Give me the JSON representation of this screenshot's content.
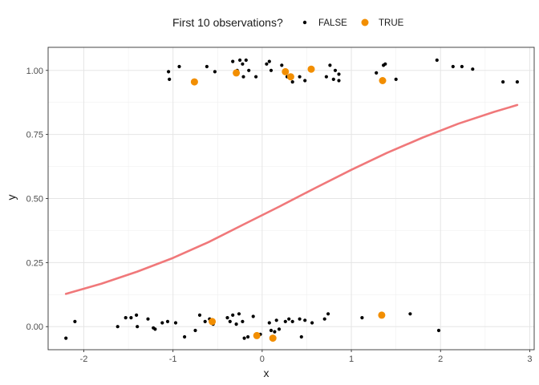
{
  "chart_data": {
    "type": "scatter",
    "xlabel": "x",
    "ylabel": "y",
    "xlim": [
      -2.4,
      3.05
    ],
    "ylim": [
      -0.09,
      1.09
    ],
    "x_ticks": [
      -2,
      -1,
      0,
      1,
      2,
      3
    ],
    "x_tick_labels": [
      "-2",
      "-1",
      "0",
      "1",
      "2",
      "3"
    ],
    "y_ticks": [
      0,
      0.25,
      0.5,
      0.75,
      1
    ],
    "y_tick_labels": [
      "0.00",
      "0.25",
      "0.50",
      "0.75",
      "1.00"
    ],
    "grid": true,
    "legend": {
      "title": "First 10 observations?",
      "position": "top",
      "entries": [
        {
          "label": "FALSE",
          "color": "#000000"
        },
        {
          "label": "TRUE",
          "color": "#f28e00"
        }
      ]
    },
    "series": [
      {
        "name": "FALSE",
        "color": "#000000",
        "points": [
          [
            -1.05,
            0.995
          ],
          [
            -1.04,
            0.965
          ],
          [
            -0.93,
            1.015
          ],
          [
            -0.75,
            0.96
          ],
          [
            -0.62,
            1.015
          ],
          [
            -0.53,
            0.995
          ],
          [
            -0.33,
            1.035
          ],
          [
            -0.28,
            1.0
          ],
          [
            -0.25,
            1.04
          ],
          [
            -0.22,
            1.025
          ],
          [
            -0.21,
            0.975
          ],
          [
            -0.18,
            1.04
          ],
          [
            -0.15,
            1.0
          ],
          [
            -0.07,
            0.975
          ],
          [
            0.05,
            1.025
          ],
          [
            0.08,
            1.035
          ],
          [
            0.1,
            1.0
          ],
          [
            0.22,
            1.02
          ],
          [
            0.28,
            0.975
          ],
          [
            0.34,
            0.955
          ],
          [
            0.42,
            0.975
          ],
          [
            0.48,
            0.96
          ],
          [
            0.72,
            0.975
          ],
          [
            0.76,
            1.02
          ],
          [
            0.8,
            0.965
          ],
          [
            0.82,
            1.0
          ],
          [
            0.86,
            0.985
          ],
          [
            0.86,
            0.96
          ],
          [
            1.28,
            0.99
          ],
          [
            1.36,
            1.02
          ],
          [
            1.38,
            1.025
          ],
          [
            1.5,
            0.965
          ],
          [
            1.96,
            1.04
          ],
          [
            2.14,
            1.015
          ],
          [
            2.24,
            1.015
          ],
          [
            2.36,
            1.005
          ],
          [
            2.7,
            0.955
          ],
          [
            2.86,
            0.955
          ],
          [
            -2.2,
            -0.045
          ],
          [
            -2.1,
            0.02
          ],
          [
            -1.62,
            0.0
          ],
          [
            -1.53,
            0.035
          ],
          [
            -1.47,
            0.035
          ],
          [
            -1.41,
            0.045
          ],
          [
            -1.4,
            0.0
          ],
          [
            -1.28,
            0.03
          ],
          [
            -1.22,
            -0.005
          ],
          [
            -1.2,
            -0.01
          ],
          [
            -1.12,
            0.015
          ],
          [
            -1.06,
            0.02
          ],
          [
            -0.97,
            0.015
          ],
          [
            -0.87,
            -0.04
          ],
          [
            -0.75,
            -0.015
          ],
          [
            -0.7,
            0.045
          ],
          [
            -0.64,
            0.02
          ],
          [
            -0.59,
            0.03
          ],
          [
            -0.55,
            0.01
          ],
          [
            -0.39,
            0.035
          ],
          [
            -0.36,
            0.02
          ],
          [
            -0.33,
            0.045
          ],
          [
            -0.29,
            0.01
          ],
          [
            -0.26,
            0.05
          ],
          [
            -0.22,
            0.02
          ],
          [
            -0.2,
            -0.045
          ],
          [
            -0.16,
            -0.04
          ],
          [
            -0.1,
            0.04
          ],
          [
            -0.02,
            -0.03
          ],
          [
            0.08,
            0.015
          ],
          [
            0.1,
            -0.015
          ],
          [
            0.14,
            -0.02
          ],
          [
            0.16,
            0.025
          ],
          [
            0.19,
            -0.01
          ],
          [
            0.26,
            0.02
          ],
          [
            0.3,
            0.03
          ],
          [
            0.34,
            0.02
          ],
          [
            0.42,
            0.03
          ],
          [
            0.44,
            -0.04
          ],
          [
            0.48,
            0.025
          ],
          [
            0.56,
            0.015
          ],
          [
            0.7,
            0.03
          ],
          [
            0.74,
            0.05
          ],
          [
            1.12,
            0.035
          ],
          [
            1.66,
            0.05
          ],
          [
            1.98,
            -0.015
          ]
        ]
      },
      {
        "name": "TRUE",
        "color": "#f28e00",
        "points": [
          [
            -0.76,
            0.955
          ],
          [
            -0.29,
            0.99
          ],
          [
            0.26,
            0.995
          ],
          [
            0.32,
            0.975
          ],
          [
            0.55,
            1.005
          ],
          [
            1.35,
            0.96
          ],
          [
            -0.56,
            0.02
          ],
          [
            -0.06,
            -0.035
          ],
          [
            0.12,
            -0.045
          ],
          [
            1.34,
            0.045
          ]
        ]
      }
    ],
    "fit_line": {
      "color": "#f0787a",
      "x": [
        -2.2,
        -1.8,
        -1.4,
        -1.0,
        -0.6,
        -0.2,
        0.2,
        0.6,
        1.0,
        1.4,
        1.8,
        2.2,
        2.6,
        2.86
      ],
      "y": [
        0.128,
        0.168,
        0.215,
        0.268,
        0.33,
        0.4,
        0.47,
        0.542,
        0.612,
        0.678,
        0.738,
        0.792,
        0.838,
        0.865
      ]
    }
  }
}
